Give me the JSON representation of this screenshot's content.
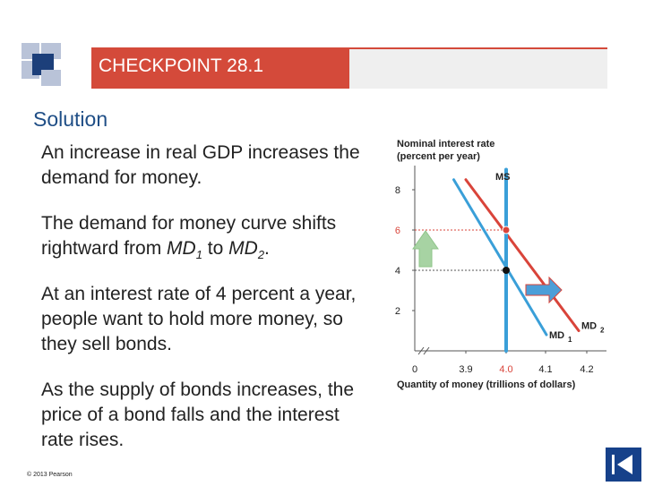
{
  "banner": {
    "title": "CHECKPOINT 28.1"
  },
  "content": {
    "heading": "Solution",
    "p1": "An increase in real GDP increases the demand for money.",
    "p2": {
      "text_a": "The demand for money curve shifts rightward from ",
      "md": "MD",
      "sub1": "1",
      "to": " to ",
      "sub2": "2",
      "end": "."
    },
    "p3": "At an interest rate of 4 percent a year, people want to hold more money, so they sell bonds.",
    "p4": "As the supply of bonds increases, the price of a bond falls and the interest rate rises."
  },
  "footer": {
    "copyright": "© 2013 Pearson"
  },
  "colors": {
    "accent": "#d44a3a",
    "heading": "#1f4e86",
    "md1": "#3a9fd8",
    "md2": "#d9443a",
    "ms": "#3a9fd8",
    "nav": "#16418a"
  },
  "chart_data": {
    "type": "line",
    "ylabel": "Nominal interest rate (percent per year)",
    "xlabel": "Quantity of money (trillions of dollars)",
    "x_ticks": [
      "0",
      "3.9",
      "4.0",
      "4.1",
      "4.2"
    ],
    "y_ticks": [
      "2",
      "4",
      "6",
      "8"
    ],
    "ylim": [
      0,
      9
    ],
    "series": [
      {
        "name": "MD1",
        "label_main": "MD",
        "label_sub": "1",
        "points": [
          [
            3.87,
            8.5
          ],
          [
            4.1,
            0.8
          ]
        ]
      },
      {
        "name": "MD2",
        "label_main": "MD",
        "label_sub": "2",
        "points": [
          [
            3.9,
            8.5
          ],
          [
            4.18,
            1.0
          ]
        ]
      },
      {
        "name": "MS",
        "label_main": "MS",
        "points": [
          [
            4.0,
            0
          ],
          [
            4.0,
            9
          ]
        ]
      }
    ],
    "highlight_points": [
      {
        "x": 4.0,
        "y": 4,
        "color": "black"
      },
      {
        "x": 4.0,
        "y": 6,
        "color": "red"
      }
    ],
    "arrows": [
      {
        "kind": "up",
        "description": "interest rate rises from 4 to 6"
      },
      {
        "kind": "right",
        "description": "demand shifts right"
      }
    ]
  }
}
